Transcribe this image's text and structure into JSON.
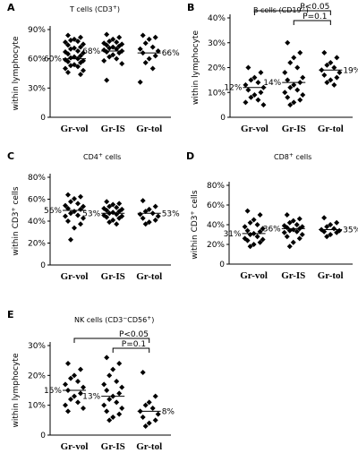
{
  "chart_data": [
    {
      "panel": "A",
      "type": "scatter",
      "title": "T cells (CD3+)",
      "ylabel": "within lymphocyte",
      "yticks": [
        "0",
        "30%",
        "60%",
        "90%"
      ],
      "ylim": [
        0,
        90
      ],
      "categories": [
        "Gr-vol",
        "Gr-IS",
        "Gr-tol"
      ],
      "means": [
        60,
        68,
        66
      ],
      "mean_labels": [
        "60%",
        "68%",
        "66%"
      ],
      "groups": [
        [
          84,
          82,
          80,
          79,
          78,
          77,
          75,
          74,
          72,
          71,
          70,
          68,
          67,
          66,
          65,
          63,
          62,
          61,
          60,
          59,
          58,
          57,
          56,
          54,
          53,
          52,
          50,
          48,
          46,
          44
        ],
        [
          85,
          82,
          80,
          78,
          77,
          76,
          75,
          74,
          73,
          72,
          71,
          70,
          69,
          68,
          67,
          66,
          64,
          62,
          60,
          58,
          55,
          38
        ],
        [
          84,
          82,
          80,
          76,
          72,
          70,
          68,
          66,
          63,
          60,
          56,
          50,
          36
        ]
      ]
    },
    {
      "panel": "B",
      "type": "scatter",
      "title": "B cells (CD19+)",
      "ylabel": "within lymphocyte",
      "yticks": [
        "0",
        "10%",
        "20%",
        "30%",
        "40%"
      ],
      "ylim": [
        0,
        40
      ],
      "categories": [
        "Gr-vol",
        "Gr-IS",
        "Gr-tol"
      ],
      "means": [
        12,
        14,
        19
      ],
      "mean_labels": [
        "12%",
        "14%",
        "19%"
      ],
      "sig": [
        {
          "label": "P<0.05",
          "from": 0,
          "to": 2,
          "level": 0
        },
        {
          "label": "P=0.1",
          "from": 1,
          "to": 2,
          "level": 1
        }
      ],
      "groups": [
        [
          20,
          18,
          16,
          15,
          14,
          13,
          12,
          11,
          10,
          9,
          8,
          7,
          6,
          5
        ],
        [
          30,
          26,
          24,
          22,
          20,
          18,
          16,
          15,
          14,
          13,
          12,
          11,
          10,
          9,
          8,
          7,
          6,
          5
        ],
        [
          26,
          24,
          22,
          21,
          20,
          19,
          18,
          17,
          16,
          15,
          14,
          13
        ]
      ]
    },
    {
      "panel": "C",
      "type": "scatter",
      "title": "CD4+ cells",
      "ylabel": "within CD3+ cells",
      "yticks": [
        "0",
        "20%",
        "40%",
        "60%",
        "80%"
      ],
      "ylim": [
        0,
        90
      ],
      "categories": [
        "Gr-vol",
        "Gr-IS",
        "Gr-tol"
      ],
      "means": [
        56,
        53,
        53
      ],
      "mean_labels": [
        "56%",
        "53%",
        "53%"
      ],
      "groups": [
        [
          72,
          70,
          68,
          65,
          63,
          61,
          60,
          58,
          57,
          55,
          53,
          51,
          50,
          48,
          45,
          42,
          38,
          26
        ],
        [
          65,
          63,
          62,
          60,
          59,
          58,
          57,
          56,
          55,
          54,
          53,
          52,
          51,
          50,
          49,
          48,
          46,
          44,
          42
        ],
        [
          66,
          60,
          57,
          55,
          53,
          52,
          50,
          48,
          46,
          44,
          42
        ]
      ]
    },
    {
      "panel": "D",
      "type": "scatter",
      "title": "CD8+ cells",
      "ylabel": "within CD3+ cells",
      "yticks": [
        "0",
        "20%",
        "40%",
        "60%",
        "80%"
      ],
      "ylim": [
        0,
        80
      ],
      "categories": [
        "Gr-vol",
        "Gr-IS",
        "Gr-tol"
      ],
      "means": [
        31,
        36,
        35
      ],
      "mean_labels": [
        "31%",
        "36%",
        "35%"
      ],
      "groups": [
        [
          54,
          50,
          45,
          42,
          40,
          38,
          36,
          34,
          33,
          31,
          30,
          28,
          26,
          25,
          24,
          22,
          20,
          18
        ],
        [
          50,
          46,
          44,
          42,
          40,
          39,
          38,
          37,
          36,
          35,
          34,
          33,
          32,
          30,
          28,
          26,
          22,
          18
        ],
        [
          47,
          42,
          40,
          38,
          36,
          35,
          34,
          33,
          32,
          30,
          28
        ]
      ]
    },
    {
      "panel": "E",
      "type": "scatter",
      "title": "NK cells (CD3−CD56+)",
      "ylabel": "within lymphocyte",
      "yticks": [
        "0",
        "10%",
        "20%",
        "30%"
      ],
      "ylim": [
        0,
        30
      ],
      "categories": [
        "Gr-vol",
        "Gr-IS",
        "Gr-tol"
      ],
      "means": [
        15,
        13,
        8
      ],
      "mean_labels": [
        "15%",
        "13%",
        "8%"
      ],
      "sig": [
        {
          "label": "P<0.05",
          "from": 0,
          "to": 2,
          "level": 0
        },
        {
          "label": "P=0.1",
          "from": 1,
          "to": 2,
          "level": 1
        }
      ],
      "groups": [
        [
          24,
          22,
          20,
          19,
          18,
          17,
          16,
          15,
          14,
          13,
          12,
          11,
          10,
          9,
          8
        ],
        [
          26,
          24,
          22,
          20,
          18,
          17,
          16,
          15,
          14,
          13,
          12,
          11,
          10,
          9,
          8,
          7,
          6,
          5
        ],
        [
          21,
          13,
          11,
          10,
          9,
          8,
          7,
          6,
          5,
          4,
          3
        ]
      ]
    }
  ]
}
